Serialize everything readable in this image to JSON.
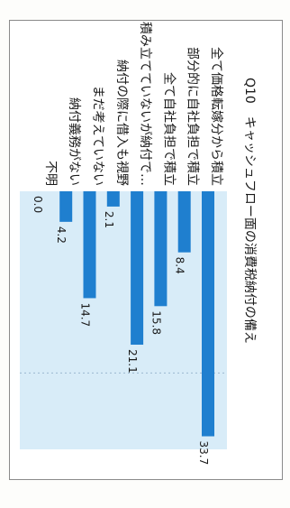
{
  "chart_data": {
    "type": "bar",
    "orientation": "horizontal",
    "title": "Q10　キャッシュフロー面の消費税納付の備え",
    "categories": [
      "全て価格転嫁分から積立",
      "部分的に自社負担で積立",
      "全て自社負担で積立",
      "積み立てていないが納付で…",
      "納付の際に借入も視野",
      "まだ考えていない",
      "納付義務がない",
      "不明"
    ],
    "values": [
      33.7,
      8.4,
      15.8,
      21.1,
      2.1,
      14.7,
      4.2,
      0.0
    ],
    "value_labels": [
      "33.7",
      "8.4",
      "15.8",
      "21.1",
      "2.1",
      "14.7",
      "4.2",
      "0.0"
    ],
    "xlim": [
      0,
      35
    ],
    "grid": true,
    "colors": {
      "bar": "#1f7fcf",
      "plot_bg": "#d8ecf8",
      "grid": "#9ab8cf"
    }
  }
}
